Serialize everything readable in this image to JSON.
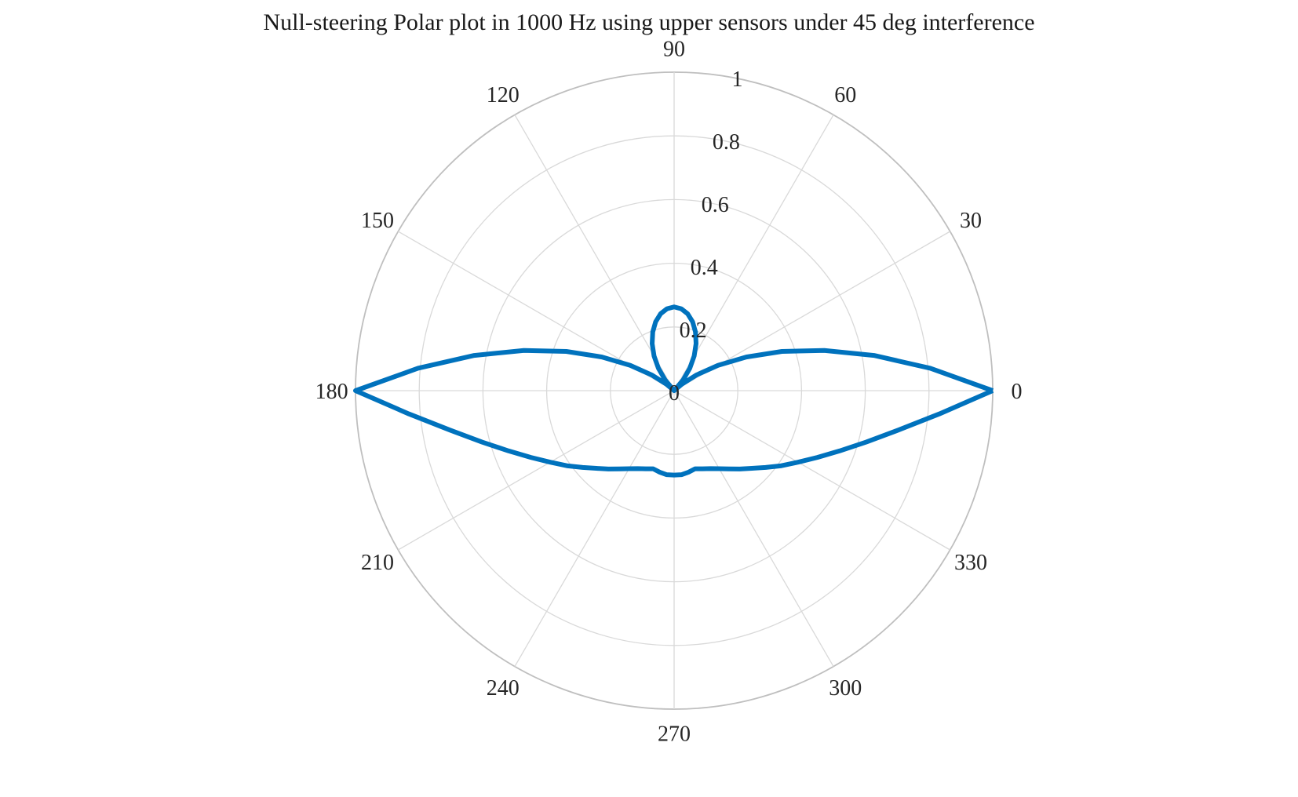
{
  "chart_data": {
    "type": "polar-line",
    "title": "Null-steering Polar plot in 1000 Hz using upper sensors under 45 deg interference",
    "theta_unit": "degrees",
    "theta_ticks": [
      "0",
      "30",
      "60",
      "90",
      "120",
      "150",
      "180",
      "210",
      "240",
      "270",
      "300",
      "330"
    ],
    "r_ticks": [
      "0",
      "0.2",
      "0.4",
      "0.6",
      "0.8",
      "1"
    ],
    "rlim": [
      0,
      1
    ],
    "grid": true,
    "legend": "none",
    "colors": {
      "series": "#0072BD",
      "grid": "#d9d9d9",
      "outer_ring": "#bfbfbf",
      "text": "#262626"
    },
    "series": [
      {
        "theta": [
          0,
          5,
          10,
          15,
          20,
          25,
          30,
          35,
          40,
          45,
          50,
          55,
          60,
          65,
          70,
          75,
          80,
          85,
          90,
          95,
          100,
          105,
          110,
          115,
          120,
          125,
          130,
          135,
          140,
          145,
          150,
          155,
          160,
          165,
          170,
          175,
          180,
          185,
          190,
          195,
          200,
          205,
          210,
          215,
          220,
          225,
          230,
          235,
          240,
          245,
          250,
          255,
          260,
          265,
          270,
          275,
          280,
          285,
          290,
          295,
          300,
          305,
          310,
          315,
          320,
          325,
          330,
          335,
          340,
          345,
          350,
          355,
          360
        ],
        "r": [
          1.0,
          0.807,
          0.637,
          0.488,
          0.36,
          0.25,
          0.159,
          0.086,
          0.032,
          0.0,
          0.044,
          0.086,
          0.126,
          0.163,
          0.196,
          0.224,
          0.245,
          0.258,
          0.263,
          0.258,
          0.245,
          0.224,
          0.196,
          0.163,
          0.126,
          0.086,
          0.044,
          0.0,
          0.032,
          0.086,
          0.159,
          0.25,
          0.36,
          0.488,
          0.637,
          0.807,
          1.0,
          0.836,
          0.714,
          0.624,
          0.553,
          0.496,
          0.449,
          0.411,
          0.375,
          0.345,
          0.321,
          0.3,
          0.283,
          0.27,
          0.261,
          0.254,
          0.26,
          0.265,
          0.265,
          0.265,
          0.26,
          0.254,
          0.261,
          0.27,
          0.283,
          0.3,
          0.321,
          0.345,
          0.375,
          0.411,
          0.449,
          0.496,
          0.553,
          0.624,
          0.714,
          0.836,
          1.0
        ]
      }
    ]
  }
}
